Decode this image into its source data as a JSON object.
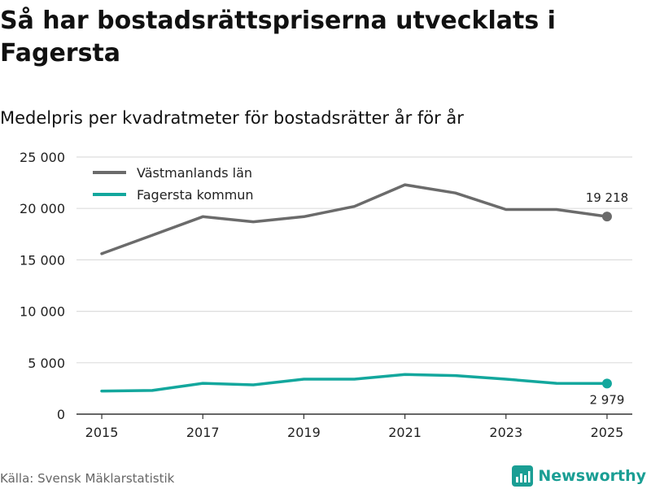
{
  "header": {
    "title": "Så har bostadsrättspriserna utvecklats i Fagersta",
    "subtitle": "Medelpris per kvadratmeter för bostadsrätter år för år"
  },
  "footer": {
    "source": "Källa: Svensk Mäklarstatistik",
    "brand": "Newsworthy"
  },
  "colors": {
    "lan": "#6b6b6b",
    "kommun": "#13a79d",
    "grid": "#dddddd",
    "axis": "#333333",
    "brand": "#1a9e94"
  },
  "chart_data": {
    "type": "line",
    "title": "Så har bostadsrättspriserna utvecklats i Fagersta",
    "subtitle": "Medelpris per kvadratmeter för bostadsrätter år för år",
    "xlabel": "",
    "ylabel": "",
    "x": [
      2015,
      2016,
      2017,
      2018,
      2019,
      2020,
      2021,
      2022,
      2023,
      2024,
      2025
    ],
    "x_ticks": [
      "2015",
      "2017",
      "2019",
      "2021",
      "2023",
      "2025"
    ],
    "x_tick_values": [
      2015,
      2017,
      2019,
      2021,
      2023,
      2025
    ],
    "y_ticks": [
      "0",
      "5 000",
      "10 000",
      "15 000",
      "20 000",
      "25 000"
    ],
    "y_tick_values": [
      0,
      5000,
      10000,
      15000,
      20000,
      25000
    ],
    "ylim": [
      0,
      25000
    ],
    "xlim": [
      2014.5,
      2025.5
    ],
    "grid": true,
    "legend_position": "top-left",
    "series": [
      {
        "name": "Västmanlands län",
        "color": "#6b6b6b",
        "values": [
          15600,
          17400,
          19200,
          18700,
          19200,
          20200,
          22300,
          21500,
          19900,
          19900,
          19218
        ],
        "end_label": "19 218"
      },
      {
        "name": "Fagersta kommun",
        "color": "#13a79d",
        "values": [
          2250,
          2300,
          3000,
          2850,
          3400,
          3400,
          3850,
          3750,
          3400,
          3000,
          2979
        ],
        "end_label": "2 979"
      }
    ]
  }
}
